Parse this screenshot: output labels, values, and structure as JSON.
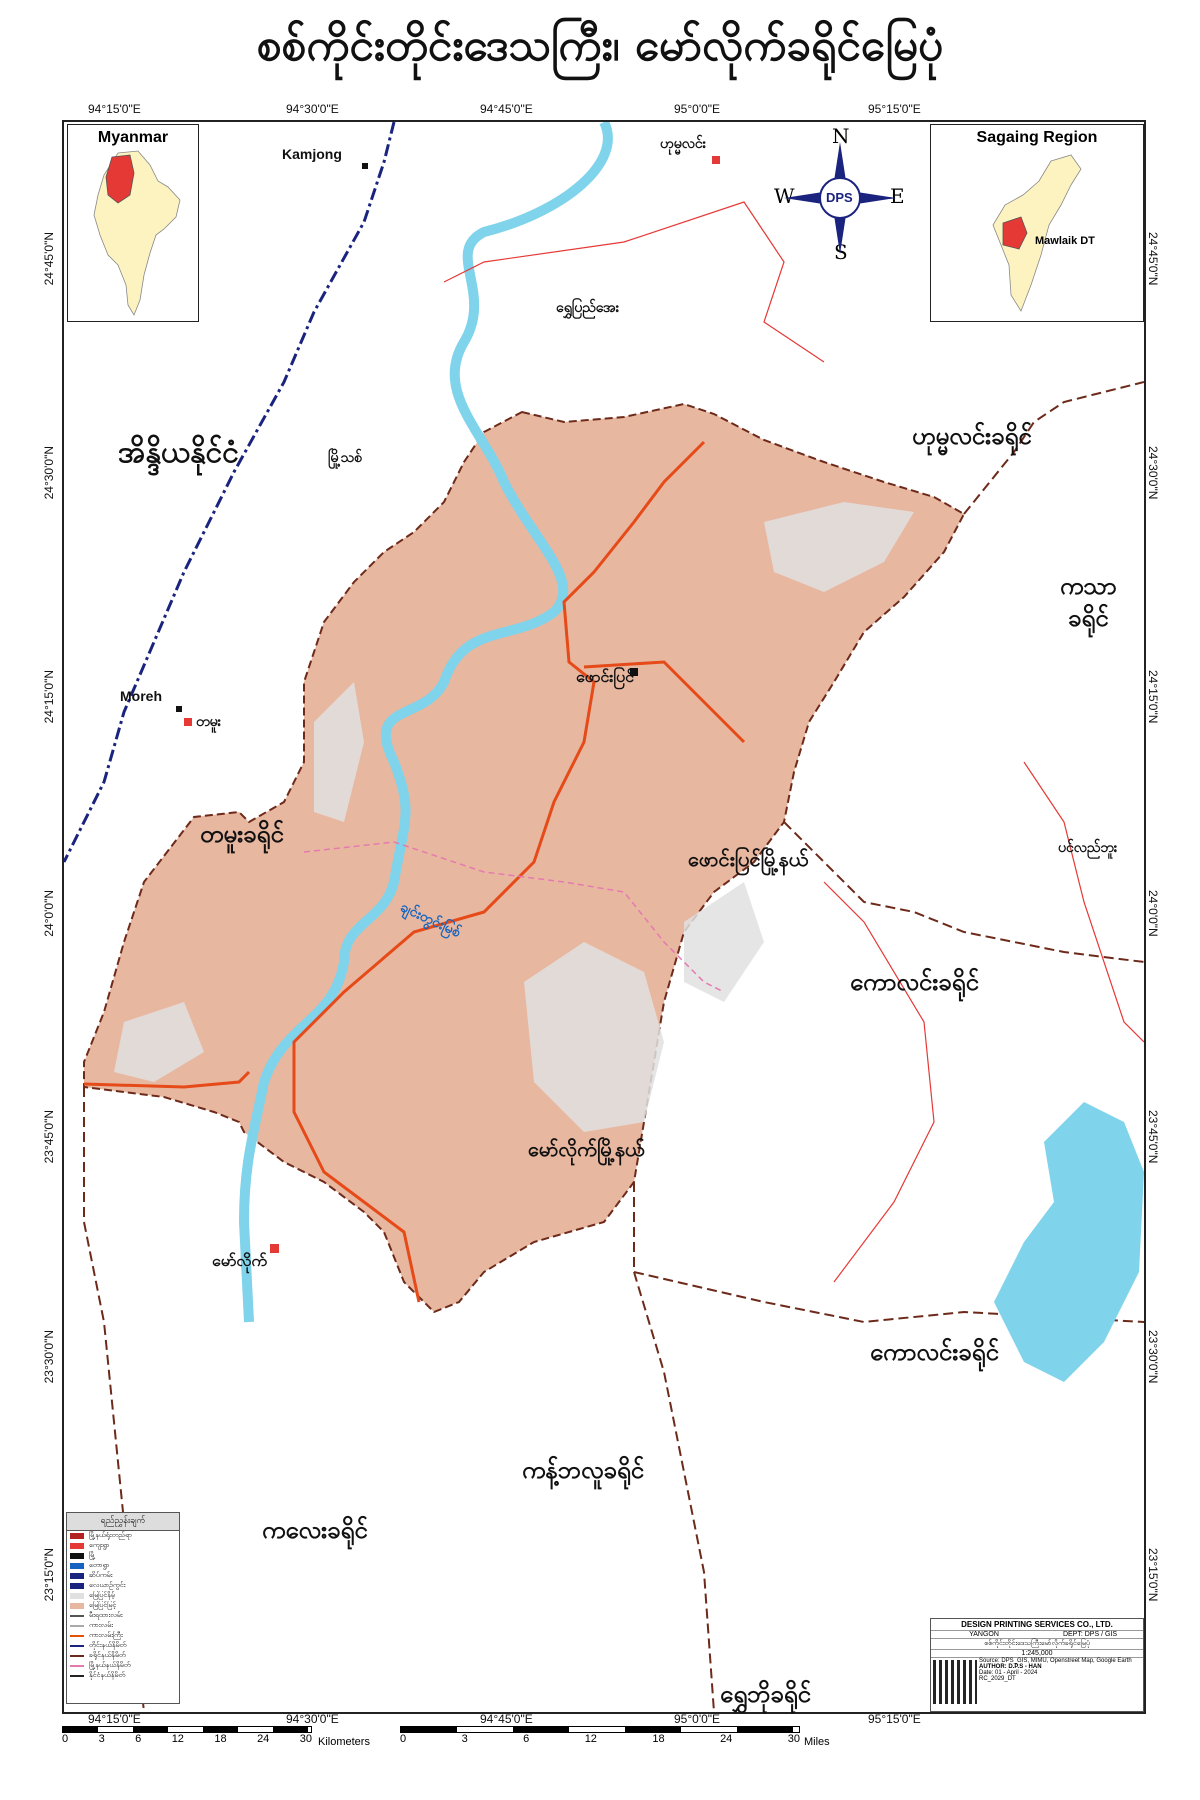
{
  "title": "စစ်ကိုင်းတိုင်းဒေသကြီး၊ မော်လိုက်ခရိုင်မြေပုံ",
  "coords": {
    "top": [
      "94°15'0\"E",
      "94°30'0\"E",
      "94°45'0\"E",
      "95°0'0\"E",
      "95°15'0\"E"
    ],
    "bottom": [
      "94°15'0\"E",
      "94°30'0\"E",
      "94°45'0\"E",
      "95°0'0\"E",
      "95°15'0\"E"
    ],
    "left": [
      "24°45'0\"N",
      "24°30'0\"N",
      "24°15'0\"N",
      "24°0'0\"N",
      "23°45'0\"N",
      "23°30'0\"N",
      "23°15'0\"N"
    ],
    "right": [
      "24°45'0\"N",
      "24°30'0\"N",
      "24°15'0\"N",
      "24°0'0\"N",
      "23°45'0\"N",
      "23°30'0\"N",
      "23°15'0\"N"
    ]
  },
  "inset_left": {
    "title": "Myanmar"
  },
  "inset_right": {
    "title": "Sagaing Region",
    "district_label": "Mawlaik DT"
  },
  "compass": {
    "n": "N",
    "s": "S",
    "e": "E",
    "w": "W",
    "logo": "DPS"
  },
  "regions": {
    "india": "အိန္ဒိယနိုင်ငံ",
    "homalin_district": "ဟုမ္မလင်းခရိုင်",
    "kathar_1": "ကသာ",
    "kathar_2": "ခရိုင်",
    "tamu_district": "တမူးခရိုင်",
    "kalay_district_1": "ကောလင်းခရိုင်",
    "kalay_district_2": "ကောလင်းခရိုင်",
    "kanbalu_district": "ကန့်ဘလူခရိုင်",
    "kale_district": "ကလေးခရိုင်",
    "shwebo_district": "ရွှေဘိုခရိုင်",
    "paungbyin_township": "ဖောင်းပြင်မြို့နယ်",
    "mawlaik_township": "မော်လိုက်မြို့နယ်"
  },
  "places": {
    "kamjong": "Kamjong",
    "moreh": "Moreh",
    "homalin": "ဟုမ္မလင်း",
    "shwepyiaye": "ရွှေပြည်အေး",
    "myothit": "မြို့သစ်",
    "tamu": "တမူး",
    "paungbyin": "ဖောင်းပြင်",
    "mawlaik": "မော်လိုက်",
    "pinlebu": "ပင်လည်ဘူး",
    "chindwin": "ချင်းတွင်းမြစ်"
  },
  "legend": {
    "title": "ရည်ညွှန်းချက်",
    "rows": [
      "မြို့နယ်ရုံးတည်ရာ",
      "ကျေးရွာ",
      "မြို့",
      "တောရွာ",
      "ဆိပ်ကမ်း",
      "လေယာဉ်ကွင်း",
      "မြေပြင်နိမ့်",
      "မြေပြင်မြင့်",
      "မီးရထားလမ်း",
      "ကားလမ်း",
      "ကားလမ်းကြီး",
      "တိုင်းနယ်နိမိတ်",
      "ခရိုင်နယ်နိမိတ်",
      "မြို့နယ်နယ်နိမိတ်",
      "နိုင်ငံနယ်နိမိတ်"
    ],
    "colors": [
      "#b22222",
      "#e53935",
      "#111111",
      "#1565c0",
      "#1a237e",
      "#1a237e",
      "#e0e0e0",
      "#e8b7a0",
      "#555555",
      "#aaaaaa",
      "#e65100",
      "#1a237e",
      "#6d2a1a",
      "#e57ab0",
      "#222222"
    ]
  },
  "info": {
    "company": "DESIGN PRINTING SERVICES CO., LTD.",
    "city": "YANGON",
    "dept": "DEPT: DPS / GIS",
    "map_name": "စစ်ကိုင်းတိုင်းဒေသကြီးမော်လိုက်ခရိုင်မြေပုံ",
    "scale": "1:245,000",
    "source": "Source: DPS_GIS, MIMU, Openstreet Map, Google Earth",
    "author": "AUTHOR: D.P.S - HAN",
    "date": "Date: 01 - April - 2024",
    "code": "RC_2029_DT"
  },
  "scale": {
    "km_ticks": [
      "0",
      "3",
      "6",
      "12",
      "18",
      "24",
      "30"
    ],
    "km_label": "Kilometers",
    "mi_ticks": [
      "0",
      "3",
      "6",
      "12",
      "18",
      "24",
      "30"
    ],
    "mi_label": "Miles"
  },
  "colors": {
    "district_fill": "#e8b7a0",
    "river": "#7fd3ea",
    "road": "#e64a19",
    "district_boundary": "#6d2a1a",
    "township_boundary": "#e57ab0",
    "country_boundary": "#1a237e"
  }
}
